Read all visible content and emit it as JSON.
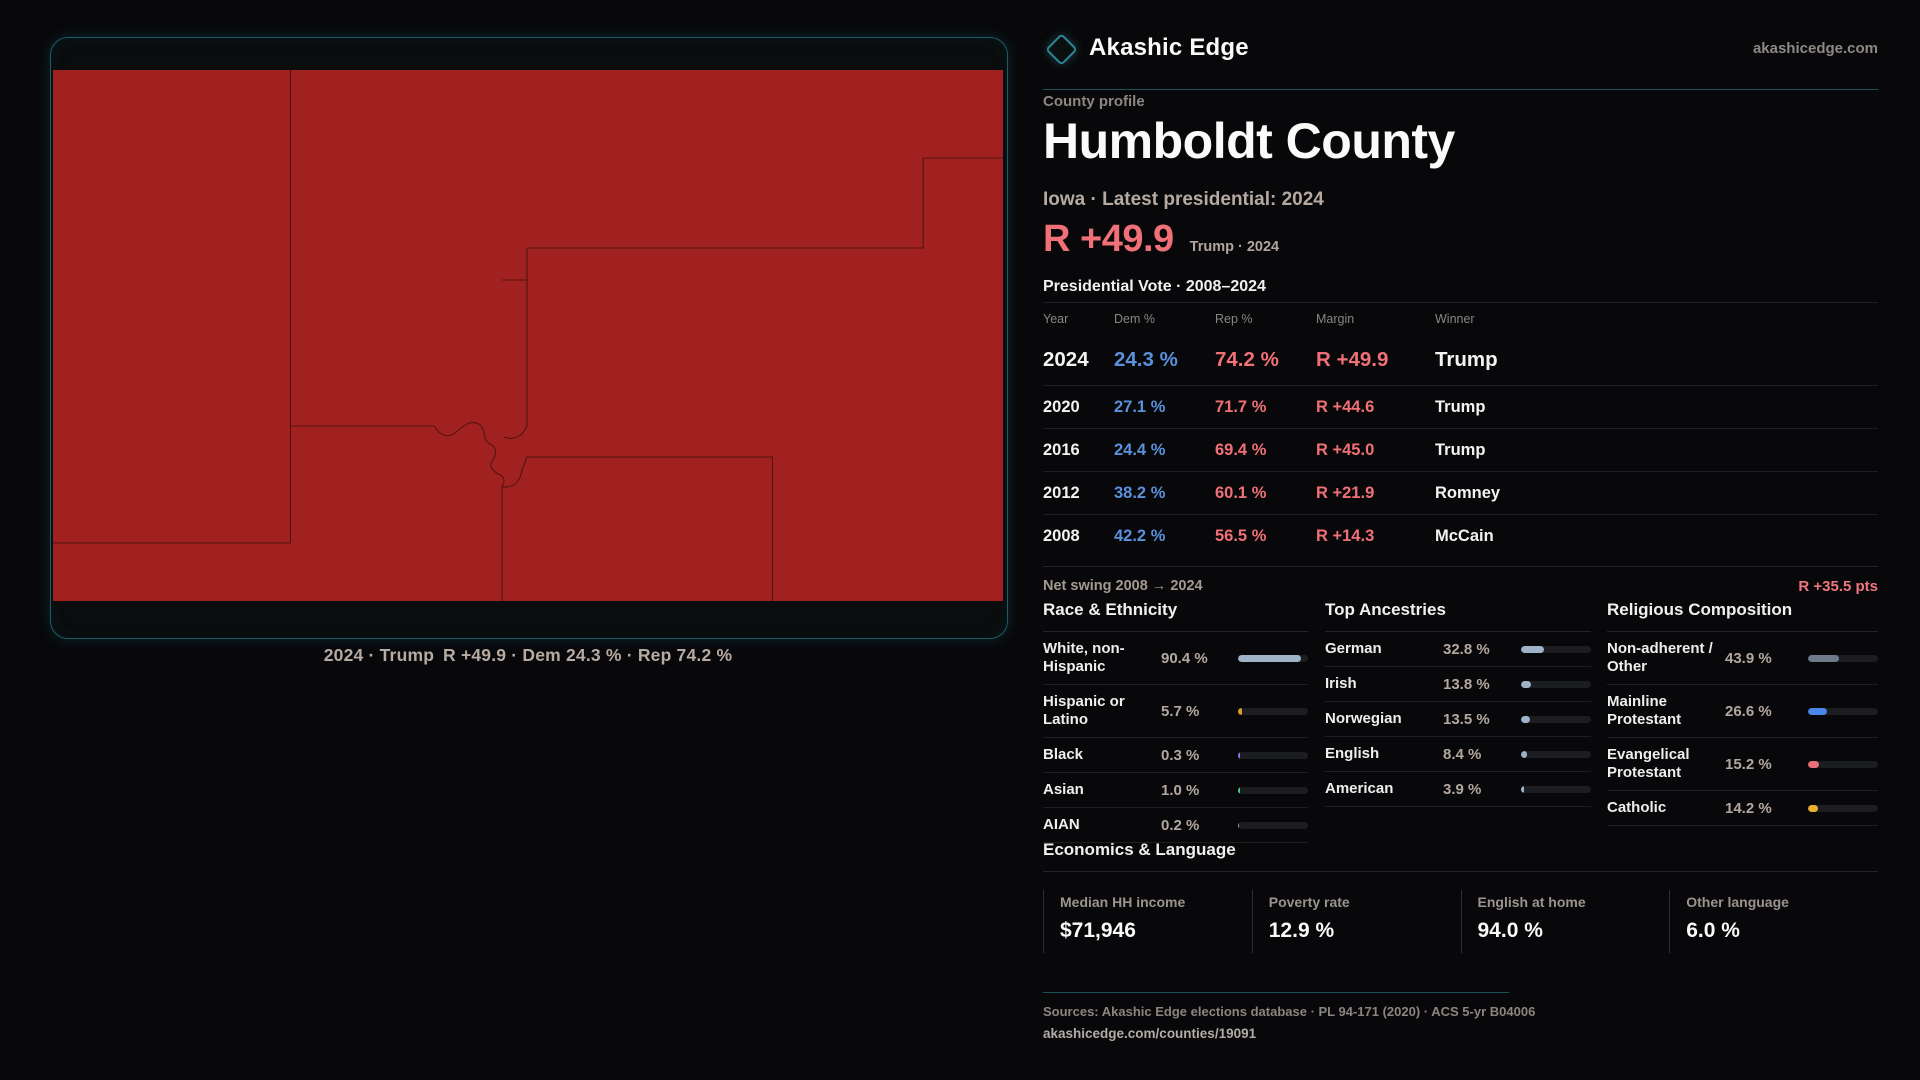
{
  "brand": {
    "name": "Akashic Edge",
    "domain": "akashicedge.com"
  },
  "map": {
    "caption": "2024 · Trump R +49.9 · Dem 24.3 % · Rep 74.2 %"
  },
  "profile": {
    "eyebrow": "County profile",
    "title": "Humboldt County",
    "subtitle": "Iowa · Latest presidential: 2024",
    "margin_value": "R +49.9",
    "margin_note": "Trump · 2024",
    "table_title": "Presidential Vote · 2008–2024"
  },
  "vote_table": {
    "columns": [
      "Year",
      "Dem %",
      "Rep %",
      "Margin",
      "Winner"
    ],
    "rows": [
      {
        "year": "2024",
        "dem": "24.3 %",
        "rep": "74.2 %",
        "margin": "R +49.9",
        "winner": "Trump",
        "highlight": true
      },
      {
        "year": "2020",
        "dem": "27.1 %",
        "rep": "71.7 %",
        "margin": "R +44.6",
        "winner": "Trump",
        "highlight": false
      },
      {
        "year": "2016",
        "dem": "24.4 %",
        "rep": "69.4 %",
        "margin": "R +45.0",
        "winner": "Trump",
        "highlight": false
      },
      {
        "year": "2012",
        "dem": "38.2 %",
        "rep": "60.1 %",
        "margin": "R +21.9",
        "winner": "Romney",
        "highlight": false
      },
      {
        "year": "2008",
        "dem": "42.2 %",
        "rep": "56.5 %",
        "margin": "R +14.3",
        "winner": "McCain",
        "highlight": false
      }
    ],
    "net_swing_label": "Net swing 2008 → 2024",
    "net_swing_value": "R +35.5 pts"
  },
  "sections": {
    "race": {
      "title": "Race & Ethnicity",
      "rows": [
        {
          "label": "White, non-Hispanic",
          "value": "90.4 %",
          "pct": 90.4,
          "color": "#9fb2c8"
        },
        {
          "label": "Hispanic or Latino",
          "value": "5.7 %",
          "pct": 5.7,
          "color": "#e39b2d"
        },
        {
          "label": "Black",
          "value": "0.3 %",
          "pct": 0.3,
          "color": "#8b7cf0"
        },
        {
          "label": "Asian",
          "value": "1.0 %",
          "pct": 1.0,
          "color": "#3ecf8e"
        },
        {
          "label": "AIAN",
          "value": "0.2 %",
          "pct": 0.2,
          "color": "#9aa5b1"
        }
      ]
    },
    "ancestries": {
      "title": "Top Ancestries",
      "rows": [
        {
          "label": "German",
          "value": "32.8 %",
          "pct": 32.8,
          "color": "#9fb2c8"
        },
        {
          "label": "Irish",
          "value": "13.8 %",
          "pct": 13.8,
          "color": "#9fb2c8"
        },
        {
          "label": "Norwegian",
          "value": "13.5 %",
          "pct": 13.5,
          "color": "#9fb2c8"
        },
        {
          "label": "English",
          "value": "8.4 %",
          "pct": 8.4,
          "color": "#9fb2c8"
        },
        {
          "label": "American",
          "value": "3.9 %",
          "pct": 3.9,
          "color": "#9fb2c8"
        }
      ]
    },
    "religion": {
      "title": "Religious Composition",
      "rows": [
        {
          "label": "Non-adherent / Other",
          "value": "43.9 %",
          "pct": 43.9,
          "color": "#6e7a8a"
        },
        {
          "label": "Mainline Protestant",
          "value": "26.6 %",
          "pct": 26.6,
          "color": "#4a85e8"
        },
        {
          "label": "Evangelical Protestant",
          "value": "15.2 %",
          "pct": 15.2,
          "color": "#e8707a"
        },
        {
          "label": "Catholic",
          "value": "14.2 %",
          "pct": 14.2,
          "color": "#e8b02e"
        }
      ]
    }
  },
  "economics": {
    "title": "Economics & Language",
    "stats": [
      {
        "label": "Median HH income",
        "value": "$71,946"
      },
      {
        "label": "Poverty rate",
        "value": "12.9 %"
      },
      {
        "label": "English at home",
        "value": "94.0 %"
      },
      {
        "label": "Other language",
        "value": "6.0 %"
      }
    ]
  },
  "footer": {
    "sources": "Sources: Akashic Edge elections database · PL 94-171 (2020) · ACS 5-yr B04006",
    "permalink": "akashicedge.com/counties/19091"
  },
  "colors": {
    "dem": "#5b90dd",
    "rep": "#ef7076",
    "accent_teal": "#1d535d",
    "map_red": "#a12120"
  }
}
